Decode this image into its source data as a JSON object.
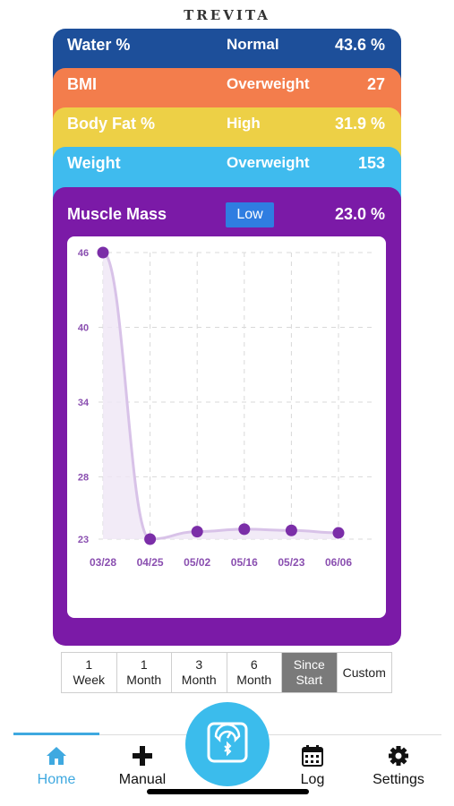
{
  "app": {
    "logo": "TREVITA"
  },
  "metrics": {
    "water": {
      "label": "Water %",
      "status": "Normal",
      "value": "43.6 %",
      "color": "#1d4f9a"
    },
    "bmi": {
      "label": "BMI",
      "status": "Overweight",
      "value": "27",
      "color": "#f37d4c"
    },
    "fat": {
      "label": "Body Fat %",
      "status": "High",
      "value": "31.9 %",
      "color": "#edd046"
    },
    "weight": {
      "label": "Weight",
      "status": "Overweight",
      "value": "153",
      "color": "#3fbbee"
    },
    "muscle": {
      "label": "Muscle Mass",
      "status": "Low",
      "value": "23.0 %",
      "color": "#7b1aa7"
    }
  },
  "chart_data": {
    "type": "line",
    "x": [
      "03/28",
      "04/25",
      "05/02",
      "05/16",
      "05/23",
      "06/06"
    ],
    "series": [
      {
        "values": [
          46,
          23,
          23.6,
          23.8,
          23.7,
          23.5
        ],
        "color": "#7b2ea8"
      }
    ],
    "yticks": [
      23,
      28,
      34,
      40,
      46
    ],
    "ylim": [
      23,
      46
    ],
    "grid": true
  },
  "ranges": [
    {
      "line1": "1",
      "line2": "Week"
    },
    {
      "line1": "1",
      "line2": "Month"
    },
    {
      "line1": "3",
      "line2": "Month"
    },
    {
      "line1": "6",
      "line2": "Month"
    },
    {
      "line1": "Since",
      "line2": "Start",
      "active": true
    },
    {
      "line1": "Custom",
      "line2": ""
    }
  ],
  "tabs": {
    "home": {
      "label": "Home",
      "icon": "home-icon"
    },
    "manual": {
      "label": "Manual",
      "icon": "plus-icon"
    },
    "scale": {
      "icon": "scale-icon"
    },
    "log": {
      "label": "Log",
      "icon": "calendar-icon"
    },
    "settings": {
      "label": "Settings",
      "icon": "gear-icon"
    }
  }
}
